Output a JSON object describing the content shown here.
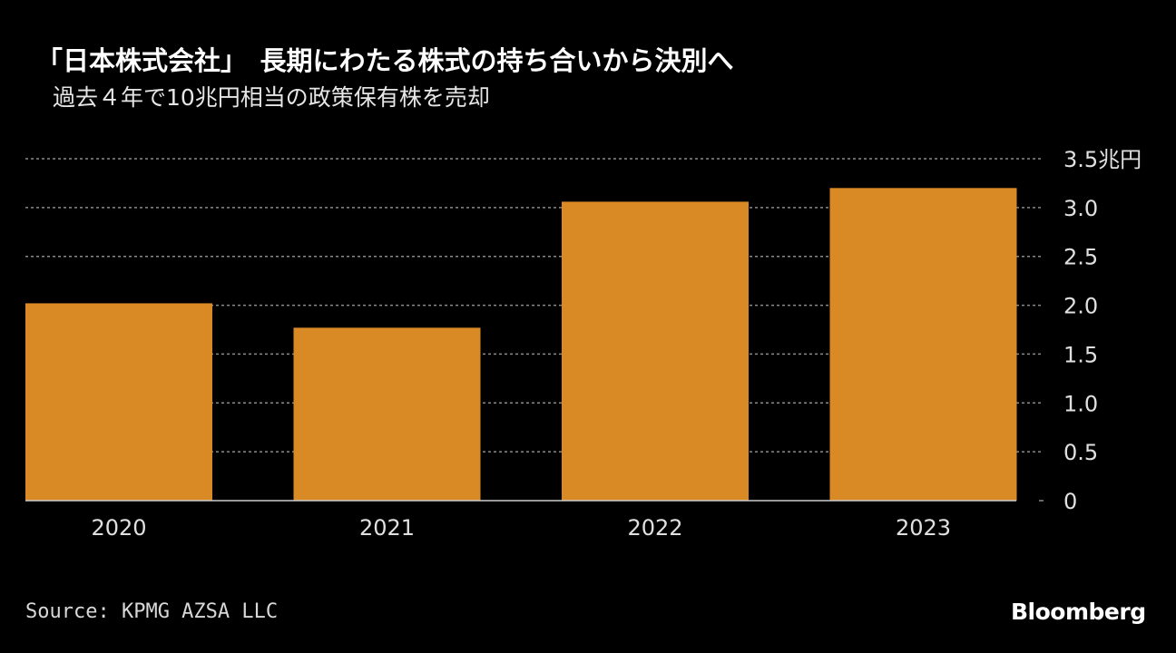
{
  "title": "「日本株式会社」　長期にわたる株式の持ち合いから決別へ",
  "subtitle": "過去４年で10兆円相当の政策保有株を売却",
  "source": "Source: KPMG AZSA LLC",
  "logo": "Bloomberg",
  "colors": {
    "bar": "#DA8A24",
    "background": "#000000",
    "grid": "#8a8a8a"
  },
  "chart_data": {
    "type": "bar",
    "title": "「日本株式会社」　長期にわたる株式の持ち合いから決別へ",
    "subtitle": "過去４年で10兆円相当の政策保有株を売却",
    "categories": [
      "2020",
      "2021",
      "2022",
      "2023"
    ],
    "values": [
      2.02,
      1.77,
      3.06,
      3.2
    ],
    "unit": "兆円",
    "ylim": [
      0,
      3.5
    ],
    "yticks": [
      0,
      0.5,
      1.0,
      1.5,
      2.0,
      2.5,
      3.0,
      3.5
    ],
    "ytick_labels": [
      "0",
      "0.5",
      "1.0",
      "1.5",
      "2.0",
      "2.5",
      "3.0",
      "3.5兆円"
    ],
    "y_axis_side": "right",
    "grid": true
  }
}
